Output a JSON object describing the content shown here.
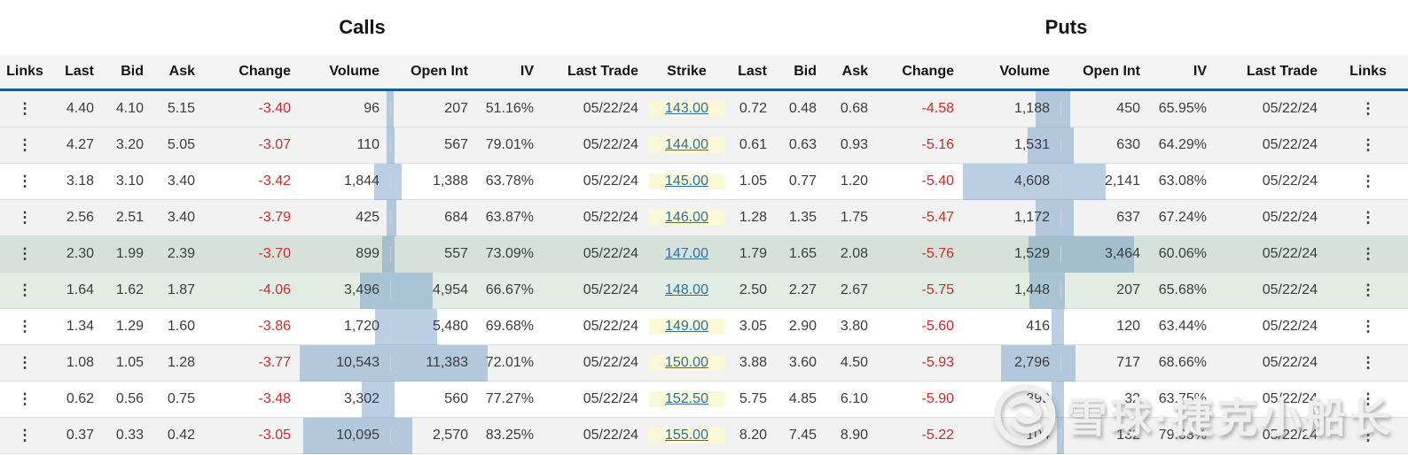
{
  "titles": {
    "calls": "Calls",
    "puts": "Puts"
  },
  "columns": {
    "calls": [
      "Links",
      "Last",
      "Bid",
      "Ask",
      "Change",
      "Volume",
      "Open Int",
      "IV",
      "Last Trade"
    ],
    "strike": "Strike",
    "puts": [
      "Last",
      "Bid",
      "Ask",
      "Change",
      "Volume",
      "Open Int",
      "IV",
      "Last Trade",
      "Links"
    ]
  },
  "icons": {
    "row_menu": "kebab-menu-icon",
    "row_menu_glyph": "⋮",
    "watermark_logo": "xueqiu-snowball-logo"
  },
  "colors": {
    "header_border": "#1d5a8c",
    "change_negative": "#c62f2f",
    "strike_link": "#2d6f9f",
    "strike_column_bg": "#fbf8d7",
    "highlight_row_dark": "#d6e2d9",
    "highlight_row_light": "#e1ece3",
    "zebra_gray": "#f2f2f2",
    "histogram_bar": "#a9c5de"
  },
  "watermark": {
    "text": "雪球·捷克小船长"
  },
  "rows": [
    {
      "style": "gray",
      "calls": {
        "last": "4.40",
        "bid": "4.10",
        "ask": "5.15",
        "change": "-3.40",
        "volume": "96",
        "open_int": "207",
        "iv": "51.16%",
        "last_trade": "05/22/24"
      },
      "strike": "143.00",
      "puts": {
        "last": "0.72",
        "bid": "0.48",
        "ask": "0.68",
        "change": "-4.58",
        "volume": "1,188",
        "open_int": "450",
        "iv": "65.95%",
        "last_trade": "05/22/24"
      }
    },
    {
      "style": "gray",
      "calls": {
        "last": "4.27",
        "bid": "3.20",
        "ask": "5.05",
        "change": "-3.07",
        "volume": "110",
        "open_int": "567",
        "iv": "79.01%",
        "last_trade": "05/22/24"
      },
      "strike": "144.00",
      "puts": {
        "last": "0.61",
        "bid": "0.63",
        "ask": "0.93",
        "change": "-5.16",
        "volume": "1,531",
        "open_int": "630",
        "iv": "64.29%",
        "last_trade": "05/22/24"
      }
    },
    {
      "style": "white",
      "calls": {
        "last": "3.18",
        "bid": "3.10",
        "ask": "3.40",
        "change": "-3.42",
        "volume": "1,844",
        "open_int": "1,388",
        "iv": "63.78%",
        "last_trade": "05/22/24"
      },
      "strike": "145.00",
      "puts": {
        "last": "1.05",
        "bid": "0.77",
        "ask": "1.20",
        "change": "-5.40",
        "volume": "4,608",
        "open_int": "2,141",
        "iv": "63.08%",
        "last_trade": "05/22/24"
      }
    },
    {
      "style": "gray",
      "calls": {
        "last": "2.56",
        "bid": "2.51",
        "ask": "3.40",
        "change": "-3.79",
        "volume": "425",
        "open_int": "684",
        "iv": "63.87%",
        "last_trade": "05/22/24"
      },
      "strike": "146.00",
      "puts": {
        "last": "1.28",
        "bid": "1.35",
        "ask": "1.75",
        "change": "-5.47",
        "volume": "1,172",
        "open_int": "637",
        "iv": "67.24%",
        "last_trade": "05/22/24"
      }
    },
    {
      "style": "green1",
      "calls": {
        "last": "2.30",
        "bid": "1.99",
        "ask": "2.39",
        "change": "-3.70",
        "volume": "899",
        "open_int": "557",
        "iv": "73.09%",
        "last_trade": "05/22/24"
      },
      "strike": "147.00",
      "puts": {
        "last": "1.79",
        "bid": "1.65",
        "ask": "2.08",
        "change": "-5.76",
        "volume": "1,529",
        "open_int": "3,464",
        "iv": "60.06%",
        "last_trade": "05/22/24"
      }
    },
    {
      "style": "green2",
      "calls": {
        "last": "1.64",
        "bid": "1.62",
        "ask": "1.87",
        "change": "-4.06",
        "volume": "3,496",
        "open_int": "4,954",
        "iv": "66.67%",
        "last_trade": "05/22/24"
      },
      "strike": "148.00",
      "puts": {
        "last": "2.50",
        "bid": "2.27",
        "ask": "2.67",
        "change": "-5.75",
        "volume": "1,448",
        "open_int": "207",
        "iv": "65.68%",
        "last_trade": "05/22/24"
      }
    },
    {
      "style": "white",
      "calls": {
        "last": "1.34",
        "bid": "1.29",
        "ask": "1.60",
        "change": "-3.86",
        "volume": "1,720",
        "open_int": "5,480",
        "iv": "69.68%",
        "last_trade": "05/22/24"
      },
      "strike": "149.00",
      "puts": {
        "last": "3.05",
        "bid": "2.90",
        "ask": "3.80",
        "change": "-5.60",
        "volume": "416",
        "open_int": "120",
        "iv": "63.44%",
        "last_trade": "05/22/24"
      }
    },
    {
      "style": "gray",
      "calls": {
        "last": "1.08",
        "bid": "1.05",
        "ask": "1.28",
        "change": "-3.77",
        "volume": "10,543",
        "open_int": "11,383",
        "iv": "72.01%",
        "last_trade": "05/22/24"
      },
      "strike": "150.00",
      "puts": {
        "last": "3.88",
        "bid": "3.60",
        "ask": "4.50",
        "change": "-5.93",
        "volume": "2,796",
        "open_int": "717",
        "iv": "68.66%",
        "last_trade": "05/22/24"
      }
    },
    {
      "style": "white",
      "calls": {
        "last": "0.62",
        "bid": "0.56",
        "ask": "0.75",
        "change": "-3.48",
        "volume": "3,302",
        "open_int": "560",
        "iv": "77.27%",
        "last_trade": "05/22/24"
      },
      "strike": "152.50",
      "puts": {
        "last": "5.75",
        "bid": "4.85",
        "ask": "6.10",
        "change": "-5.90",
        "volume": "399",
        "open_int": "32",
        "iv": "63.75%",
        "last_trade": "05/22/24"
      }
    },
    {
      "style": "gray",
      "calls": {
        "last": "0.37",
        "bid": "0.33",
        "ask": "0.42",
        "change": "-3.05",
        "volume": "10,095",
        "open_int": "2,570",
        "iv": "83.25%",
        "last_trade": "05/22/24"
      },
      "strike": "155.00",
      "puts": {
        "last": "8.20",
        "bid": "7.45",
        "ask": "8.90",
        "change": "-5.22",
        "volume": "104",
        "open_int": "132",
        "iv": "79.03%",
        "last_trade": "05/22/24"
      }
    }
  ]
}
